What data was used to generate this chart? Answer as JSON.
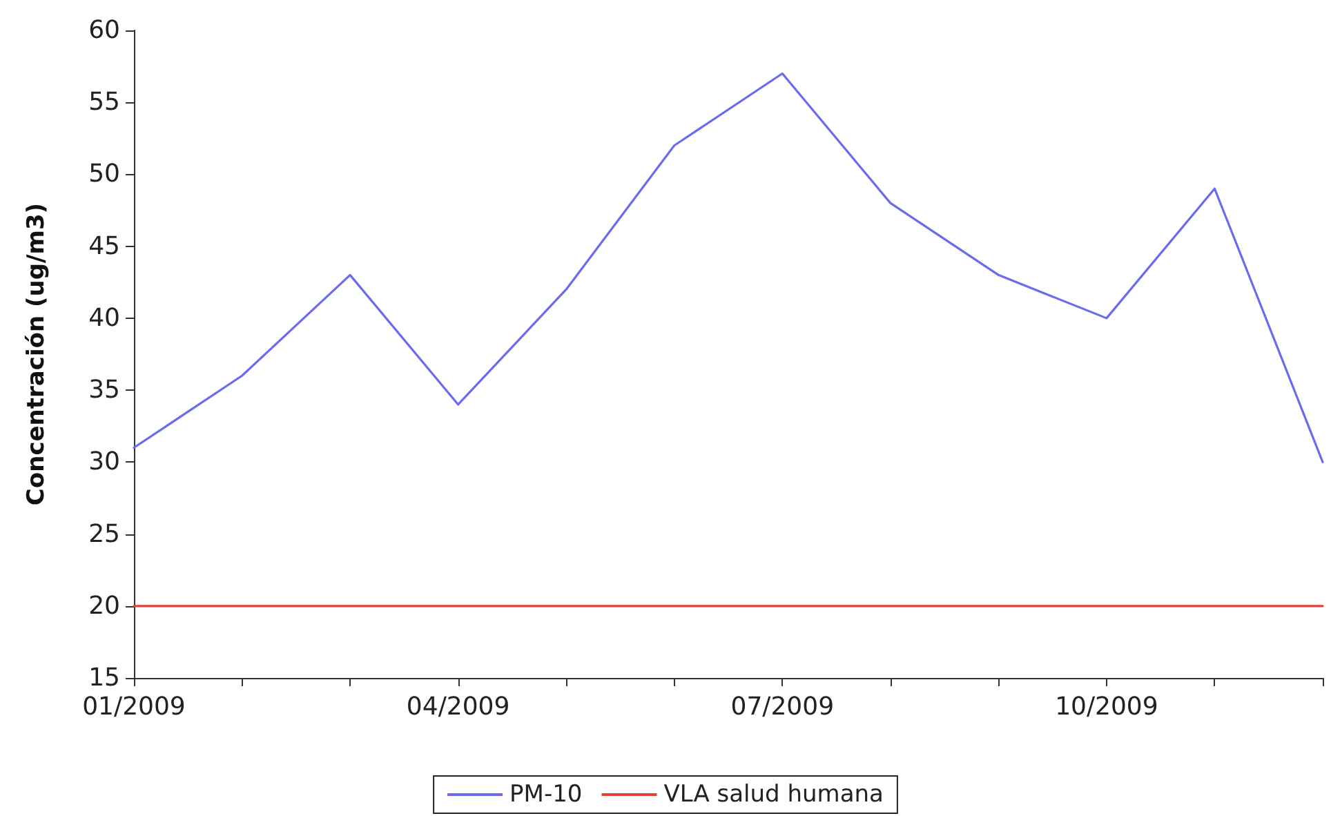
{
  "chart_data": {
    "type": "line",
    "ylabel": "Concentración (ug/m3)",
    "categories": [
      "01/2009",
      null,
      null,
      "04/2009",
      null,
      null,
      "07/2009",
      null,
      null,
      "10/2009",
      null,
      null
    ],
    "series": [
      {
        "name": "PM-10",
        "color": "#6b6bef",
        "values": [
          31,
          36,
          43,
          34,
          42,
          52,
          57,
          48,
          43,
          40,
          49,
          30
        ]
      },
      {
        "name": "VLA salud humana",
        "color": "#e0403a",
        "values": [
          20,
          20,
          20,
          20,
          20,
          20,
          20,
          20,
          20,
          20,
          20,
          20
        ]
      }
    ],
    "ylim": [
      15,
      60
    ],
    "yticks": [
      15,
      20,
      25,
      30,
      35,
      40,
      45,
      50,
      55,
      60
    ],
    "grid": false,
    "legend": "bottom",
    "marker": "none",
    "line_style": "solid"
  }
}
